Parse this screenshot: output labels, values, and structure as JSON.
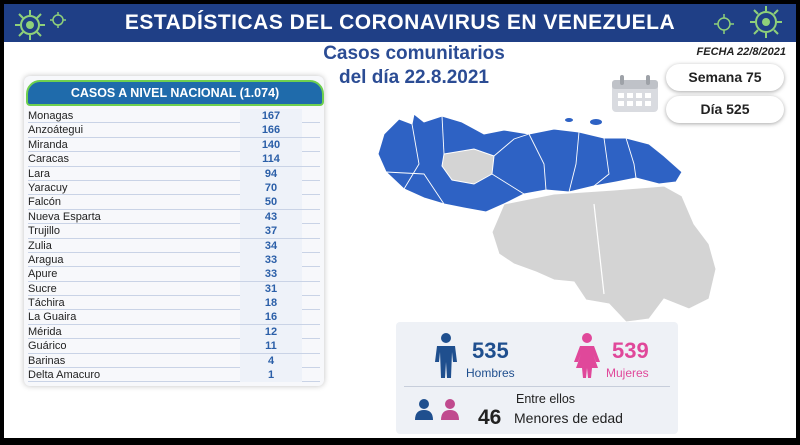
{
  "header": {
    "title": "ESTADÍSTICAS DEL CORONAVIRUS EN VENEZUELA"
  },
  "date": {
    "label": "FECHA 22/8/2021"
  },
  "subtitle": {
    "line1": "Casos comunitarios",
    "line2": "del día 22.8.2021"
  },
  "week": {
    "label": "Semana 75"
  },
  "day": {
    "label": "Día 525"
  },
  "national_table": {
    "title": "CASOS A NIVEL NACIONAL (1.074)",
    "rows": [
      {
        "state": "Monagas",
        "cases": "167"
      },
      {
        "state": "Anzoátegui",
        "cases": "166"
      },
      {
        "state": "Miranda",
        "cases": "140"
      },
      {
        "state": "Caracas",
        "cases": "114"
      },
      {
        "state": "Lara",
        "cases": "94"
      },
      {
        "state": "Yaracuy",
        "cases": "70"
      },
      {
        "state": "Falcón",
        "cases": "50"
      },
      {
        "state": "Nueva Esparta",
        "cases": "43"
      },
      {
        "state": "Trujillo",
        "cases": "37"
      },
      {
        "state": "Zulia",
        "cases": "34"
      },
      {
        "state": "Aragua",
        "cases": "33"
      },
      {
        "state": "Apure",
        "cases": "33"
      },
      {
        "state": "Sucre",
        "cases": "31"
      },
      {
        "state": "Táchira",
        "cases": "18"
      },
      {
        "state": "La Guaira",
        "cases": "16"
      },
      {
        "state": "Mérida",
        "cases": "12"
      },
      {
        "state": "Guárico",
        "cases": "11"
      },
      {
        "state": "Barinas",
        "cases": "4"
      },
      {
        "state": "Delta Amacuro",
        "cases": "1"
      }
    ]
  },
  "gender": {
    "men_count": "535",
    "men_label": "Hombres",
    "women_count": "539",
    "women_label": "Mujeres"
  },
  "minors": {
    "intro": "Entre ellos",
    "count": "46",
    "label": "Menores de edad"
  },
  "colors": {
    "banner": "#1f3f86",
    "accent_blue": "#1f6bab",
    "map_blue": "#2e62c4",
    "map_grey": "#d4d4d4",
    "men": "#1f4f8e",
    "women": "#e0489a"
  },
  "icons": [
    "virus-icon",
    "calendar-icon",
    "man-icon",
    "woman-icon",
    "children-icon"
  ]
}
